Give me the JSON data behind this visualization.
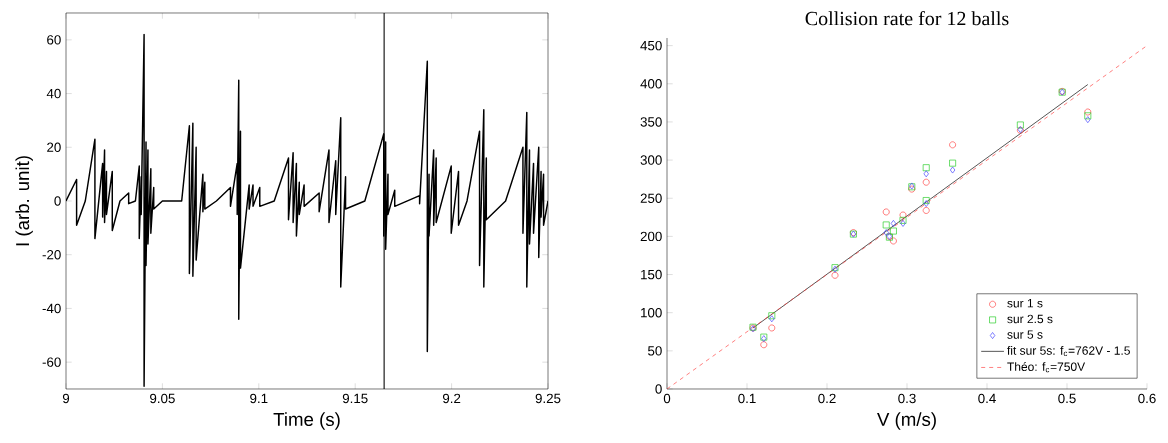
{
  "chart_data": [
    {
      "type": "line",
      "xlabel": "Time (s)",
      "ylabel": "I (arb. unit)",
      "xlim": [
        9,
        9.25
      ],
      "ylim": [
        -70,
        70
      ],
      "xticks": [
        9,
        9.05,
        9.1,
        9.15,
        9.2,
        9.25
      ],
      "yticks": [
        -60,
        -40,
        -20,
        0,
        20,
        40,
        60
      ],
      "grid": false,
      "legend": false,
      "ref_lines": [
        {
          "axis": "x",
          "value": 9.165,
          "color": "#000000"
        }
      ],
      "series": [
        {
          "color": "#000000",
          "x": [
            9.0,
            9.0055,
            9.0055,
            9.01,
            9.015,
            9.015,
            9.019,
            9.019,
            9.02,
            9.02,
            9.021,
            9.021,
            9.024,
            9.024,
            9.028,
            9.0325,
            9.0325,
            9.036,
            9.038,
            9.038,
            9.039,
            9.039,
            9.0405,
            9.0405,
            9.0415,
            9.0415,
            9.0425,
            9.0425,
            9.044,
            9.044,
            9.0455,
            9.0455,
            9.05,
            9.06,
            9.064,
            9.064,
            9.0658,
            9.0658,
            9.0675,
            9.0675,
            9.071,
            9.071,
            9.072,
            9.072,
            9.078,
            9.0853,
            9.0853,
            9.0888,
            9.0888,
            9.0896,
            9.0896,
            9.0905,
            9.0905,
            9.095,
            9.095,
            9.097,
            9.097,
            9.1005,
            9.1005,
            9.108,
            9.1154,
            9.1154,
            9.1178,
            9.1178,
            9.1195,
            9.1195,
            9.121,
            9.121,
            9.1235,
            9.1235,
            9.1313,
            9.1313,
            9.1364,
            9.1364,
            9.1399,
            9.1399,
            9.1425,
            9.1425,
            9.145,
            9.145,
            9.155,
            9.1648,
            9.1648,
            9.1658,
            9.1658,
            9.167,
            9.167,
            9.1705,
            9.1705,
            9.1834,
            9.1834,
            9.1874,
            9.1874,
            9.1883,
            9.1883,
            9.1907,
            9.1907,
            9.192,
            9.192,
            9.1998,
            9.1998,
            9.2036,
            9.2036,
            9.208,
            9.2145,
            9.2145,
            9.2167,
            9.2167,
            9.218,
            9.218,
            9.228,
            9.237,
            9.237,
            9.239,
            9.239,
            9.2404,
            9.2404,
            9.2425,
            9.2425,
            9.2452,
            9.2452,
            9.2464,
            9.2464,
            9.2477,
            9.2477,
            9.25
          ],
          "values": [
            0,
            8,
            -9,
            0,
            23,
            -14,
            14,
            -6,
            19,
            -8,
            11,
            -5,
            11,
            -11,
            0,
            3,
            -1,
            0,
            13,
            -14,
            9,
            -5,
            62,
            -69,
            22,
            -24,
            19,
            -16,
            12,
            -12,
            5,
            -3,
            0,
            0,
            28,
            -27,
            29,
            -28,
            20,
            -22,
            10,
            -4,
            7,
            -3,
            0,
            5,
            -2,
            14,
            -5,
            45,
            -44,
            26,
            -25,
            6,
            -3,
            6,
            -2,
            5,
            -2,
            0,
            16,
            -7,
            18,
            -8,
            14,
            -13,
            7,
            -5,
            6,
            -2,
            3,
            -4,
            19,
            -8,
            15,
            -5,
            31,
            -32,
            9,
            -3,
            0,
            25,
            -13,
            22,
            -18,
            10,
            -5,
            4,
            -2,
            2,
            -1,
            52,
            -56,
            10,
            -13,
            19,
            -9,
            16,
            -8,
            13,
            -12,
            11,
            -9,
            0,
            26,
            -24,
            34,
            -32,
            16,
            -7,
            0,
            20,
            -12,
            33,
            -32,
            19,
            -16,
            14,
            -12,
            20,
            -21,
            11,
            -6,
            10,
            -9,
            0
          ]
        }
      ]
    },
    {
      "type": "scatter",
      "title": "Collision rate for 12 balls",
      "xlabel": "V (m/s)",
      "xlim": [
        0,
        0.6
      ],
      "ylim": [
        0,
        460
      ],
      "xticks": [
        0,
        0.1,
        0.2,
        0.3,
        0.4,
        0.5,
        0.6
      ],
      "yticks": [
        0,
        50,
        100,
        150,
        200,
        250,
        300,
        350,
        400,
        450
      ],
      "grid": false,
      "legend": "bottom right",
      "x": [
        0.1075,
        0.121,
        0.131,
        0.21,
        0.233,
        0.274,
        0.278,
        0.283,
        0.295,
        0.306,
        0.324,
        0.324,
        0.357,
        0.4417,
        0.494,
        0.526
      ],
      "series": [
        {
          "name": "sur 1 s",
          "color": "#ff4040",
          "marker": "circle",
          "values": [
            80,
            58,
            80,
            149,
            205,
            232,
            200,
            194,
            228,
            262,
            271,
            234,
            320,
            339,
            390,
            363
          ]
        },
        {
          "name": "sur 2.5 s",
          "color": "#22cc22",
          "marker": "square",
          "values": [
            81,
            68,
            96,
            159,
            203,
            215,
            199,
            207,
            221,
            265,
            290,
            247,
            296,
            346,
            389,
            358
          ]
        },
        {
          "name": "sur 5 s",
          "color": "#4040ff",
          "marker": "diamond",
          "values": [
            79,
            66,
            92,
            157,
            203,
            205,
            200,
            217,
            217,
            266,
            282,
            243,
            287,
            340,
            389,
            353
          ]
        },
        {
          "name": "fit sur 5s: f$_{c}$=762V - 1.5",
          "type": "line",
          "marker": "none",
          "line_style": "solid",
          "color": "#000000",
          "x": [
            0.1075,
            0.526
          ],
          "values": [
            80,
            399
          ]
        },
        {
          "name": "Théo: f$_{c}$=750V",
          "type": "line",
          "marker": "none",
          "line_style": "dashed",
          "color": "#ff4040",
          "x": [
            0,
            0.6
          ],
          "values": [
            0,
            450
          ]
        }
      ]
    }
  ]
}
